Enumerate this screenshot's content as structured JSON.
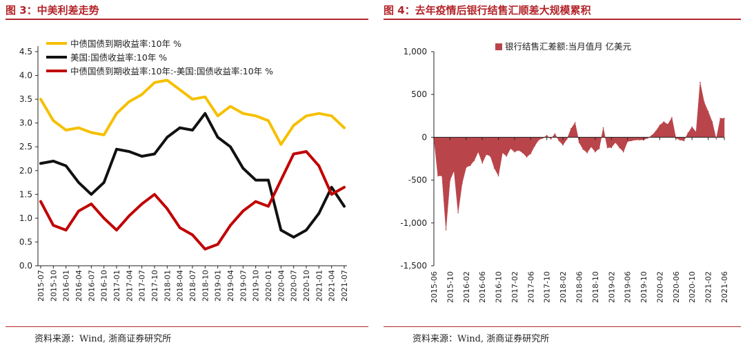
{
  "left": {
    "title": "图 3：中美利差走势",
    "source": "资料来源：Wind, 浙商证券研究所"
  },
  "right": {
    "title": "图 4：去年疫情后银行结售汇顺差大规模累积",
    "source": "资料来源：Wind, 浙商证券研究所"
  },
  "colors": {
    "title_red": "#b3252a",
    "yellow": "#f5c000",
    "black": "#111111",
    "red": "#c00000",
    "bar": "#b9454a"
  },
  "chart_data": [
    {
      "type": "line",
      "title": "中美利差走势",
      "ylim": [
        0.0,
        4.5
      ],
      "yticks": [
        "0.0",
        "0.5",
        "1.0",
        "1.5",
        "2.0",
        "2.5",
        "3.0",
        "3.5",
        "4.0",
        "4.5"
      ],
      "x_tick_labels": [
        "2015-07",
        "2015-10",
        "2016-01",
        "2016-04",
        "2016-07",
        "2016-10",
        "2017-01",
        "2017-04",
        "2017-07",
        "2017-10",
        "2018-01",
        "2018-04",
        "2018-07",
        "2018-10",
        "2019-01",
        "2019-04",
        "2019-07",
        "2019-10",
        "2020-01",
        "2020-04",
        "2020-07",
        "2020-10",
        "2021-01",
        "2021-04",
        "2021-07"
      ],
      "x": [
        "2015-07",
        "2015-10",
        "2016-01",
        "2016-04",
        "2016-07",
        "2016-10",
        "2017-01",
        "2017-04",
        "2017-07",
        "2017-10",
        "2018-01",
        "2018-04",
        "2018-07",
        "2018-10",
        "2019-01",
        "2019-04",
        "2019-07",
        "2019-10",
        "2020-01",
        "2020-04",
        "2020-07",
        "2020-10",
        "2021-01",
        "2021-04",
        "2021-07"
      ],
      "series": [
        {
          "name": "中债国债到期收益率:10年 %",
          "color": "#f5c000",
          "values": [
            3.5,
            3.05,
            2.85,
            2.9,
            2.8,
            2.75,
            3.2,
            3.45,
            3.6,
            3.85,
            3.9,
            3.7,
            3.5,
            3.55,
            3.15,
            3.35,
            3.2,
            3.15,
            3.05,
            2.55,
            2.95,
            3.15,
            3.2,
            3.15,
            2.9
          ]
        },
        {
          "name": "美国:国债收益率:10年 %",
          "color": "#111111",
          "values": [
            2.15,
            2.2,
            2.1,
            1.75,
            1.5,
            1.75,
            2.45,
            2.4,
            2.3,
            2.35,
            2.7,
            2.9,
            2.85,
            3.2,
            2.7,
            2.5,
            2.05,
            1.8,
            1.8,
            0.75,
            0.6,
            0.75,
            1.1,
            1.65,
            1.25
          ]
        },
        {
          "name": "中债国债到期收益率:10年:-美国:国债收益率:10年 %",
          "color": "#c00000",
          "values": [
            1.35,
            0.85,
            0.75,
            1.15,
            1.3,
            1.0,
            0.75,
            1.05,
            1.3,
            1.5,
            1.2,
            0.8,
            0.65,
            0.35,
            0.45,
            0.85,
            1.15,
            1.35,
            1.25,
            1.8,
            2.35,
            2.4,
            2.1,
            1.5,
            1.65
          ]
        }
      ]
    },
    {
      "type": "area",
      "title": "去年疫情后银行结售汇顺差大规模累积",
      "legend": "银行结售汇差额:当月值月 亿美元",
      "ylim": [
        -1500,
        1000
      ],
      "yticks": [
        "-1,500",
        "-1,000",
        "-500",
        "0",
        "500",
        "1,000"
      ],
      "x_tick_labels": [
        "2015-06",
        "2015-10",
        "2016-02",
        "2016-06",
        "2016-10",
        "2017-02",
        "2017-06",
        "2017-10",
        "2018-02",
        "2018-06",
        "2018-10",
        "2019-02",
        "2019-06",
        "2019-10",
        "2020-02",
        "2020-06",
        "2020-10",
        "2021-02",
        "2021-06"
      ],
      "x": [
        "2015-06",
        "2015-07",
        "2015-08",
        "2015-09",
        "2015-10",
        "2015-11",
        "2015-12",
        "2016-01",
        "2016-02",
        "2016-03",
        "2016-04",
        "2016-05",
        "2016-06",
        "2016-07",
        "2016-08",
        "2016-09",
        "2016-10",
        "2016-11",
        "2016-12",
        "2017-01",
        "2017-02",
        "2017-03",
        "2017-04",
        "2017-05",
        "2017-06",
        "2017-07",
        "2017-08",
        "2017-09",
        "2017-10",
        "2017-11",
        "2017-12",
        "2018-01",
        "2018-02",
        "2018-03",
        "2018-04",
        "2018-05",
        "2018-06",
        "2018-07",
        "2018-08",
        "2018-09",
        "2018-10",
        "2018-11",
        "2018-12",
        "2019-01",
        "2019-02",
        "2019-03",
        "2019-04",
        "2019-05",
        "2019-06",
        "2019-07",
        "2019-08",
        "2019-09",
        "2019-10",
        "2019-11",
        "2019-12",
        "2020-01",
        "2020-02",
        "2020-03",
        "2020-04",
        "2020-05",
        "2020-06",
        "2020-07",
        "2020-08",
        "2020-09",
        "2020-10",
        "2020-11",
        "2020-12",
        "2021-01",
        "2021-02",
        "2021-03",
        "2021-04",
        "2021-05",
        "2021-06"
      ],
      "values": [
        -10,
        -450,
        -450,
        -1080,
        -500,
        -390,
        -880,
        -540,
        -350,
        -330,
        -270,
        -170,
        -300,
        -200,
        -220,
        -360,
        -450,
        -180,
        -220,
        -130,
        -170,
        -150,
        -180,
        -230,
        -190,
        -100,
        -30,
        -10,
        20,
        -20,
        40,
        -40,
        -90,
        -20,
        100,
        170,
        -60,
        -140,
        -180,
        -110,
        -170,
        -130,
        110,
        -120,
        -120,
        -60,
        -120,
        -170,
        -50,
        -40,
        -30,
        -30,
        -30,
        -10,
        20,
        70,
        140,
        180,
        150,
        230,
        -10,
        -30,
        -40,
        50,
        120,
        60,
        640,
        410,
        300,
        180,
        -20,
        220,
        220
      ]
    }
  ]
}
